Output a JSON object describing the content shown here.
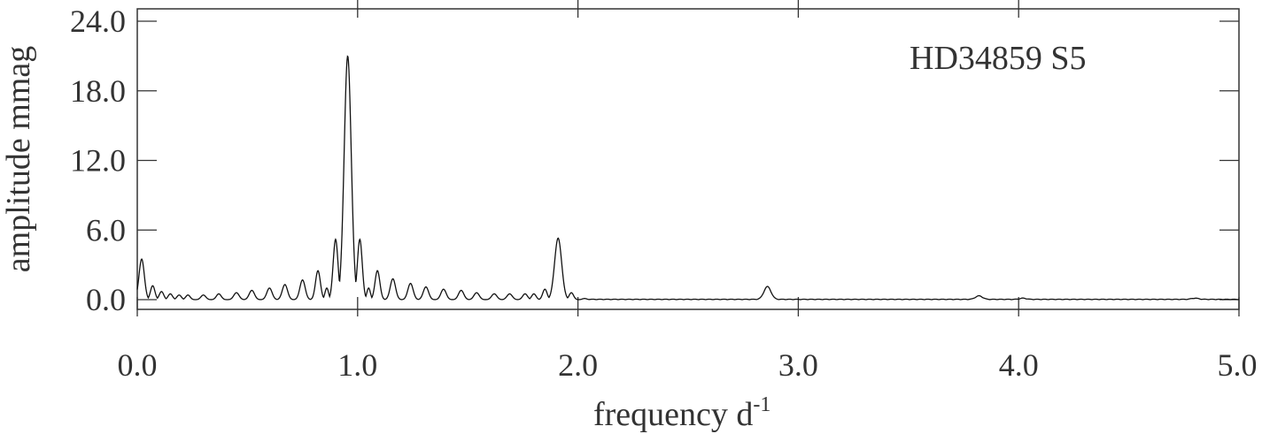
{
  "chart_data": {
    "type": "line",
    "title": "",
    "annotation": "HD34859 S5",
    "xlabel": "frequency d",
    "xlabel_superscript": "-1",
    "ylabel": "amplitude mmag",
    "xlim": [
      0.0,
      5.0
    ],
    "ylim": [
      -1.0,
      24.0
    ],
    "x_ticks": [
      0.0,
      1.0,
      2.0,
      3.0,
      4.0,
      5.0
    ],
    "x_tick_labels": [
      "0.0",
      "1.0",
      "2.0",
      "3.0",
      "4.0",
      "5.0"
    ],
    "y_ticks": [
      0.0,
      6.0,
      12.0,
      18.0,
      24.0
    ],
    "y_tick_labels": [
      "0.0",
      "6.0",
      "12.0",
      "18.0",
      "24.0"
    ],
    "grid": false,
    "line_color": "#111111",
    "peaks": [
      {
        "x": 0.02,
        "y": 3.5,
        "w": 0.012
      },
      {
        "x": 0.07,
        "y": 1.2,
        "w": 0.01
      },
      {
        "x": 0.11,
        "y": 0.7,
        "w": 0.01
      },
      {
        "x": 0.15,
        "y": 0.5,
        "w": 0.01
      },
      {
        "x": 0.19,
        "y": 0.4,
        "w": 0.01
      },
      {
        "x": 0.23,
        "y": 0.4,
        "w": 0.01
      },
      {
        "x": 0.3,
        "y": 0.4,
        "w": 0.011
      },
      {
        "x": 0.37,
        "y": 0.5,
        "w": 0.011
      },
      {
        "x": 0.45,
        "y": 0.6,
        "w": 0.012
      },
      {
        "x": 0.52,
        "y": 0.8,
        "w": 0.012
      },
      {
        "x": 0.6,
        "y": 1.0,
        "w": 0.012
      },
      {
        "x": 0.67,
        "y": 1.3,
        "w": 0.012
      },
      {
        "x": 0.75,
        "y": 1.7,
        "w": 0.012
      },
      {
        "x": 0.82,
        "y": 2.5,
        "w": 0.011
      },
      {
        "x": 0.86,
        "y": 1.0,
        "w": 0.008
      },
      {
        "x": 0.9,
        "y": 5.2,
        "w": 0.011
      },
      {
        "x": 0.955,
        "y": 21.0,
        "w": 0.016
      },
      {
        "x": 1.01,
        "y": 5.2,
        "w": 0.011
      },
      {
        "x": 1.05,
        "y": 1.0,
        "w": 0.008
      },
      {
        "x": 1.09,
        "y": 2.5,
        "w": 0.011
      },
      {
        "x": 1.16,
        "y": 1.8,
        "w": 0.012
      },
      {
        "x": 1.24,
        "y": 1.4,
        "w": 0.012
      },
      {
        "x": 1.31,
        "y": 1.1,
        "w": 0.012
      },
      {
        "x": 1.39,
        "y": 0.9,
        "w": 0.012
      },
      {
        "x": 1.47,
        "y": 0.8,
        "w": 0.012
      },
      {
        "x": 1.54,
        "y": 0.6,
        "w": 0.012
      },
      {
        "x": 1.62,
        "y": 0.5,
        "w": 0.012
      },
      {
        "x": 1.69,
        "y": 0.5,
        "w": 0.012
      },
      {
        "x": 1.76,
        "y": 0.5,
        "w": 0.011
      },
      {
        "x": 1.8,
        "y": 0.5,
        "w": 0.01
      },
      {
        "x": 1.85,
        "y": 0.9,
        "w": 0.01
      },
      {
        "x": 1.91,
        "y": 5.3,
        "w": 0.016
      },
      {
        "x": 1.97,
        "y": 0.6,
        "w": 0.01
      },
      {
        "x": 2.03,
        "y": 0.1,
        "w": 0.01
      },
      {
        "x": 2.86,
        "y": 1.1,
        "w": 0.016
      },
      {
        "x": 3.82,
        "y": 0.3,
        "w": 0.016
      },
      {
        "x": 4.02,
        "y": 0.1,
        "w": 0.014
      },
      {
        "x": 4.8,
        "y": 0.1,
        "w": 0.016
      }
    ]
  }
}
